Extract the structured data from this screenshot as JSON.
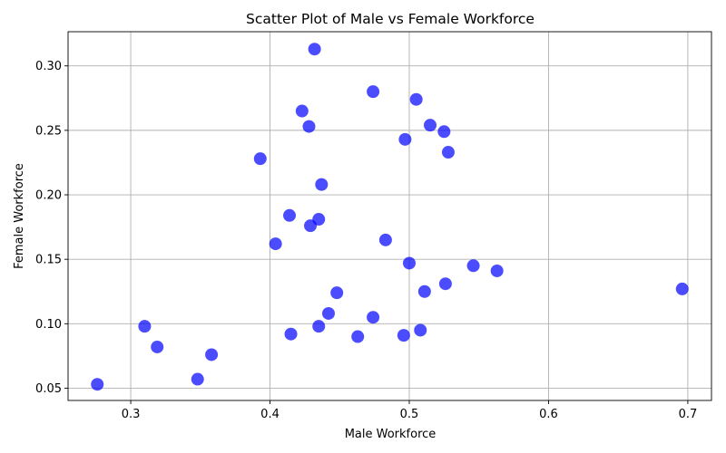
{
  "chart_data": {
    "type": "scatter",
    "title": "Scatter Plot of Male vs Female Workforce",
    "xlabel": "Male Workforce",
    "ylabel": "Female Workforce",
    "xlim": [
      0.255,
      0.717
    ],
    "ylim": [
      0.0405,
      0.3265
    ],
    "xticks": [
      0.3,
      0.4,
      0.5,
      0.6,
      0.7
    ],
    "xtick_labels": [
      "0.3",
      "0.4",
      "0.5",
      "0.6",
      "0.7"
    ],
    "yticks": [
      0.05,
      0.1,
      0.15,
      0.2,
      0.25,
      0.3
    ],
    "ytick_labels": [
      "0.05",
      "0.10",
      "0.15",
      "0.20",
      "0.25",
      "0.30"
    ],
    "grid": true,
    "color": "#0000ff",
    "points": [
      {
        "x": 0.276,
        "y": 0.053
      },
      {
        "x": 0.31,
        "y": 0.098
      },
      {
        "x": 0.319,
        "y": 0.082
      },
      {
        "x": 0.348,
        "y": 0.057
      },
      {
        "x": 0.358,
        "y": 0.076
      },
      {
        "x": 0.393,
        "y": 0.228
      },
      {
        "x": 0.404,
        "y": 0.162
      },
      {
        "x": 0.414,
        "y": 0.184
      },
      {
        "x": 0.415,
        "y": 0.092
      },
      {
        "x": 0.423,
        "y": 0.265
      },
      {
        "x": 0.428,
        "y": 0.253
      },
      {
        "x": 0.429,
        "y": 0.176
      },
      {
        "x": 0.432,
        "y": 0.313
      },
      {
        "x": 0.435,
        "y": 0.181
      },
      {
        "x": 0.435,
        "y": 0.098
      },
      {
        "x": 0.437,
        "y": 0.208
      },
      {
        "x": 0.442,
        "y": 0.108
      },
      {
        "x": 0.448,
        "y": 0.124
      },
      {
        "x": 0.463,
        "y": 0.09
      },
      {
        "x": 0.474,
        "y": 0.105
      },
      {
        "x": 0.474,
        "y": 0.28
      },
      {
        "x": 0.483,
        "y": 0.165
      },
      {
        "x": 0.496,
        "y": 0.091
      },
      {
        "x": 0.497,
        "y": 0.243
      },
      {
        "x": 0.5,
        "y": 0.147
      },
      {
        "x": 0.505,
        "y": 0.274
      },
      {
        "x": 0.508,
        "y": 0.095
      },
      {
        "x": 0.511,
        "y": 0.125
      },
      {
        "x": 0.515,
        "y": 0.254
      },
      {
        "x": 0.525,
        "y": 0.249
      },
      {
        "x": 0.526,
        "y": 0.131
      },
      {
        "x": 0.528,
        "y": 0.233
      },
      {
        "x": 0.546,
        "y": 0.145
      },
      {
        "x": 0.563,
        "y": 0.141
      },
      {
        "x": 0.696,
        "y": 0.127
      }
    ]
  }
}
